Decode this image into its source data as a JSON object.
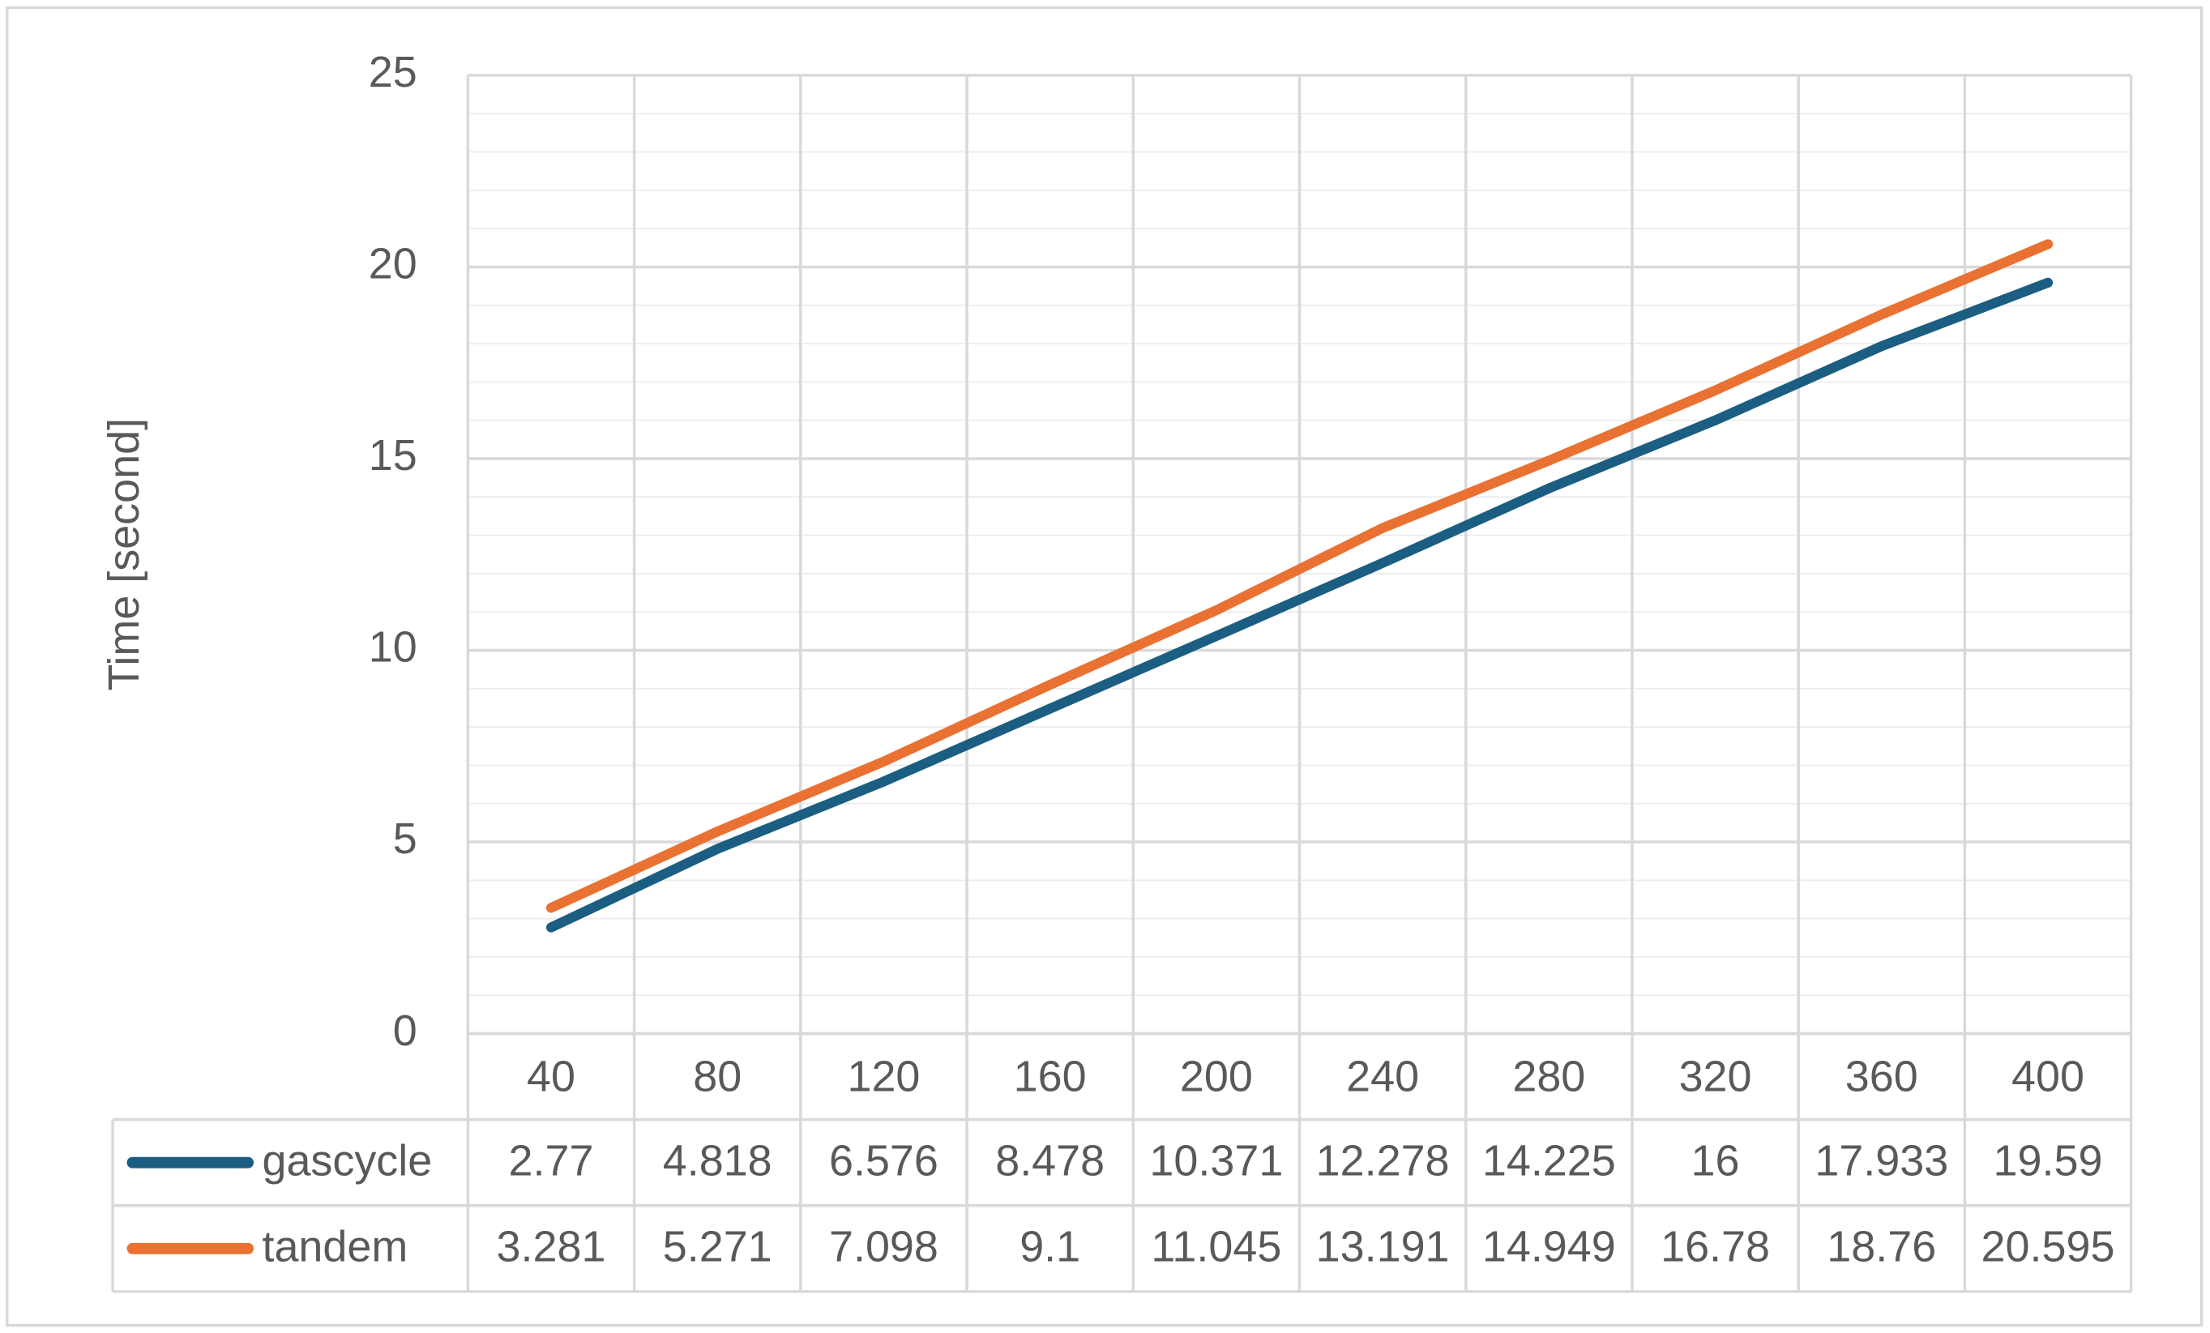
{
  "chart_data": {
    "type": "line",
    "y_label": "Time [second]",
    "categories": [
      "40",
      "80",
      "120",
      "160",
      "200",
      "240",
      "280",
      "320",
      "360",
      "400"
    ],
    "series": [
      {
        "name": "gascycle",
        "color": "#1b5e82",
        "values": [
          2.77,
          4.818,
          6.576,
          8.478,
          10.371,
          12.278,
          14.225,
          16,
          17.933,
          19.59
        ]
      },
      {
        "name": "tandem",
        "color": "#e97132",
        "values": [
          3.281,
          5.271,
          7.098,
          9.1,
          11.045,
          13.191,
          14.949,
          16.78,
          18.76,
          20.595
        ]
      }
    ],
    "ylim": [
      0,
      25
    ],
    "yticks": [
      0,
      5,
      10,
      15,
      20,
      25
    ],
    "grid": true,
    "minor_grid": true,
    "data_table": true
  }
}
